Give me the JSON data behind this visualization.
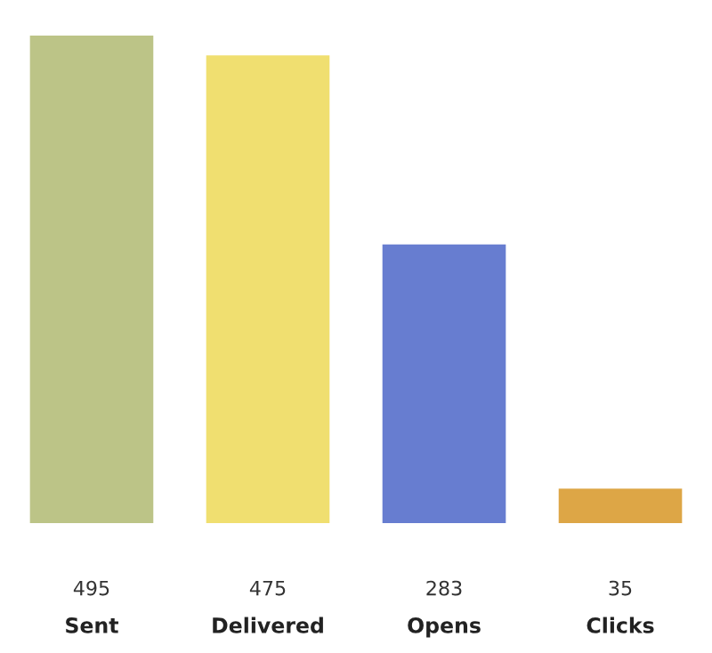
{
  "chart_data": {
    "type": "bar",
    "categories": [
      "Sent",
      "Delivered",
      "Opens",
      "Clicks"
    ],
    "values": [
      495,
      475,
      283,
      35
    ],
    "colors": [
      "#bcc487",
      "#f0df70",
      "#677dd0",
      "#dda646"
    ],
    "ylim": [
      0,
      495
    ],
    "data_labels": true,
    "grid": false,
    "legend": false
  }
}
